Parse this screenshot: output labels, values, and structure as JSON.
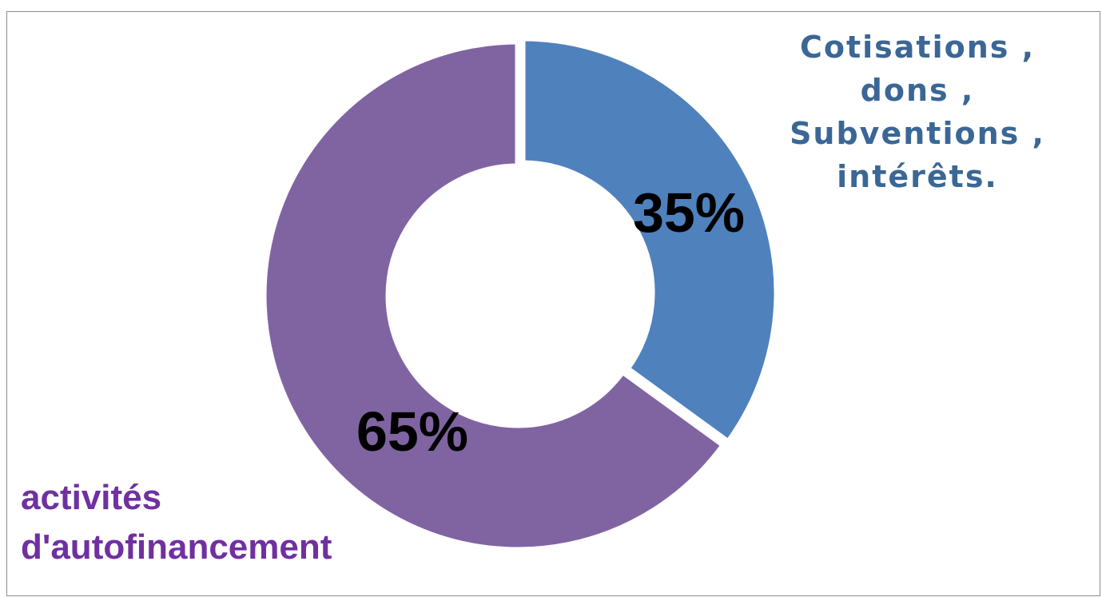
{
  "chart_data": {
    "type": "pie",
    "variant": "donut",
    "slices": [
      {
        "label": "activités d'autofinancement",
        "value": 65,
        "display": "65%",
        "color": "#8064a2"
      },
      {
        "label": "Cotisations , dons , Subventions , intérêts.",
        "value": 35,
        "display": "35%",
        "color": "#4f81bd"
      }
    ],
    "legend": {
      "blue_lines": [
        "Cotisations ,",
        "dons ,",
        "Subventions ,",
        "intérêts."
      ],
      "blue_color": "#3a6795",
      "purple_lines": [
        "activités",
        "d'autofinancement"
      ],
      "purple_color": "#7030a0"
    }
  }
}
